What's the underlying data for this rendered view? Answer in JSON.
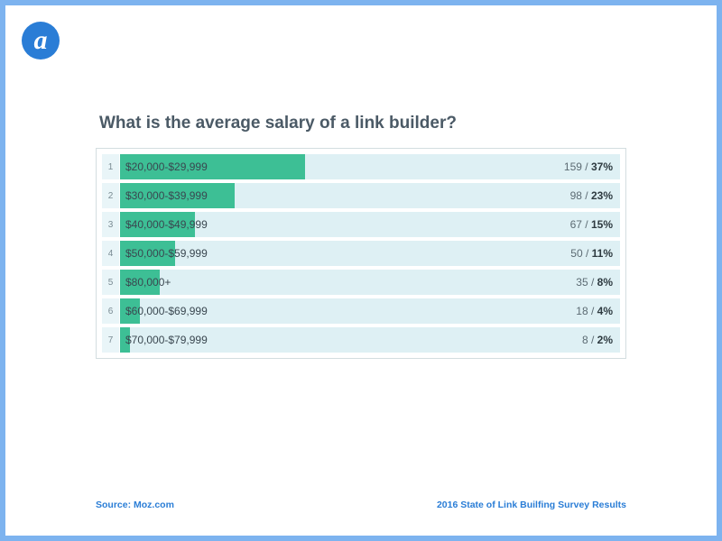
{
  "logo_letter": "a",
  "title": "What is the average salary of a link builder?",
  "chart": {
    "type": "bar",
    "orientation": "horizontal",
    "bar_color": "#3dbf95",
    "row_bg": "#def0f4",
    "rank_bg": "#e9f5f8",
    "border_color": "#d3dde0",
    "title_color": "#4b5a66",
    "text_color": "#3a4750",
    "value_color": "#5c6b73",
    "pct_color": "#2e3a40",
    "max_percent": 100,
    "rows": [
      {
        "rank": "1",
        "label": "$20,000-$29,999",
        "count": "159",
        "percent": "37%",
        "width_pct": 37
      },
      {
        "rank": "2",
        "label": "$30,000-$39,999",
        "count": "98",
        "percent": "23%",
        "width_pct": 23
      },
      {
        "rank": "3",
        "label": "$40,000-$49,999",
        "count": "67",
        "percent": "15%",
        "width_pct": 15
      },
      {
        "rank": "4",
        "label": "$50,000-$59,999",
        "count": "50",
        "percent": "11%",
        "width_pct": 11
      },
      {
        "rank": "5",
        "label": "$80,000+",
        "count": "35",
        "percent": "8%",
        "width_pct": 8
      },
      {
        "rank": "6",
        "label": "$60,000-$69,999",
        "count": "18",
        "percent": "4%",
        "width_pct": 4
      },
      {
        "rank": "7",
        "label": "$70,000-$79,999",
        "count": "8",
        "percent": "2%",
        "width_pct": 2
      }
    ]
  },
  "footer": {
    "left": "Source: Moz.com",
    "right": "2016 State of Link Builfing Survey Results"
  },
  "frame_border_color": "#7db3ef",
  "logo_bg": "#2a7dd6",
  "footer_color": "#2a7dd6"
}
